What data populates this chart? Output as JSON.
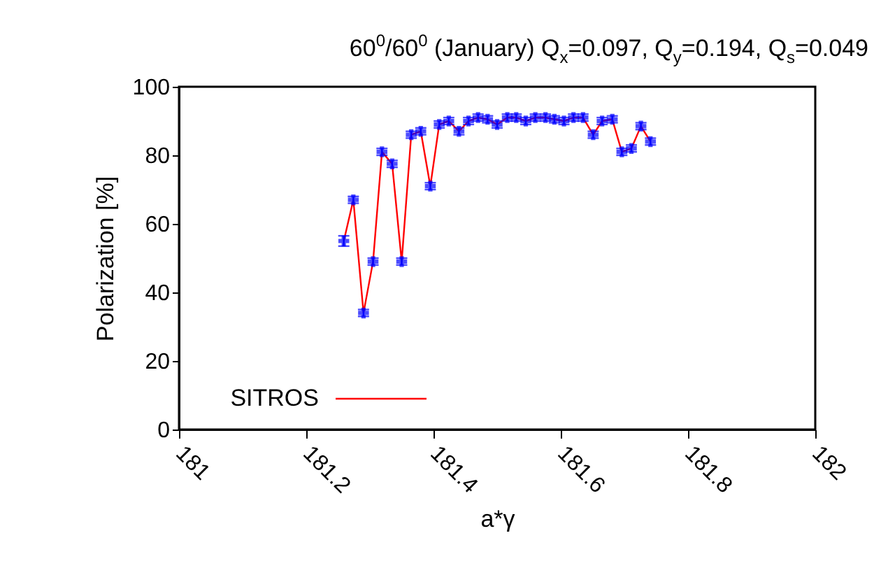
{
  "chart_data": {
    "type": "line",
    "title": "60$^{0}$/60$^{0}$ (January) Q$_{x}$=0.097, Q$_{y}$=0.194, Q$_{s}$=0.049",
    "xlabel": "a*γ",
    "ylabel": "Polarization [%]",
    "x": [
      181.259,
      181.274,
      181.29,
      181.305,
      181.319,
      181.335,
      181.35,
      181.365,
      181.38,
      181.395,
      181.409,
      181.424,
      181.44,
      181.455,
      181.47,
      181.485,
      181.5,
      181.516,
      181.53,
      181.545,
      181.56,
      181.576,
      181.59,
      181.605,
      181.62,
      181.635,
      181.651,
      181.665,
      181.681,
      181.696,
      181.711,
      181.726,
      181.741
    ],
    "series": [
      {
        "name": "SITROS",
        "color": "#ff0000",
        "colors": [
          "#0000ff",
          "#0000ff",
          "#0000ff",
          "#0000ff",
          "#0000ff",
          "#0000ff",
          "#0000ff",
          "#0000ff",
          "#0000ff",
          "#0000ff",
          "#0000ff",
          "#0000ff",
          "#0000ff",
          "#0000ff",
          "#0000ff",
          "#0000ff",
          "#0000ff",
          "#0000ff",
          "#0000ff",
          "#0000ff",
          "#0000ff",
          "#0000ff",
          "#0000ff",
          "#0000ff",
          "#0000ff",
          "#0000ff",
          "#0000ff",
          "#0000ff",
          "#0000ff",
          "#0000ff",
          "#0000ff",
          "#0000ff",
          "#0000ff"
        ],
        "values": [
          55,
          67,
          34,
          49,
          81,
          77.5,
          49,
          86,
          87,
          71,
          89,
          90,
          87,
          90,
          91,
          90.5,
          89,
          91,
          91,
          90,
          91,
          91,
          90.5,
          90,
          91,
          91,
          86,
          90,
          90.5,
          81,
          82,
          88.5,
          84
        ],
        "errors": [
          1.5,
          1,
          1,
          1,
          1,
          1,
          1,
          1,
          1,
          1,
          1,
          1,
          1,
          1,
          1,
          1,
          1,
          1,
          1,
          1,
          1,
          1,
          1,
          1,
          1,
          1,
          1,
          1,
          1,
          1,
          1,
          1,
          1
        ]
      }
    ],
    "xlim": [
      181,
      182
    ],
    "xticks": [
      181,
      181.2,
      181.4,
      181.6,
      181.8,
      182
    ],
    "ylim": [
      0,
      100
    ],
    "yticks": [
      0,
      20,
      40,
      60,
      80,
      100
    ],
    "marker": "cross",
    "line_style": "solid",
    "grid": false,
    "legend": "bottom left"
  }
}
